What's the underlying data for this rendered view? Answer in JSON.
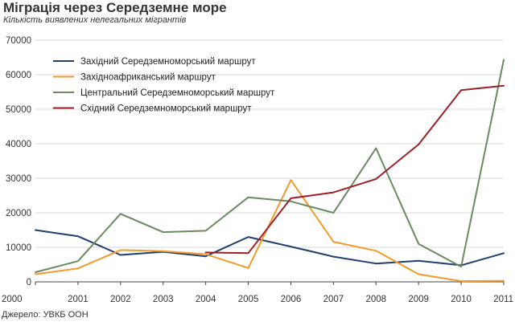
{
  "chart_data": {
    "type": "line",
    "title": "Міграція через Середземне море",
    "subtitle": "Кількість виявлених нелегальних мігрантів",
    "source": "Джерело: УВКБ ООН",
    "x": [
      "2000",
      "2001",
      "2002",
      "2003",
      "2004",
      "2005",
      "2006",
      "2007",
      "2008",
      "2009",
      "2010",
      "2011"
    ],
    "ylim": [
      0,
      70000
    ],
    "yticks": [
      0,
      10000,
      20000,
      30000,
      40000,
      50000,
      60000,
      70000
    ],
    "grid": true,
    "legend_position": "top-left",
    "series": [
      {
        "name": "Західний Середземноморський маршрут",
        "color": "#1f3f6e",
        "values": [
          15000,
          13200,
          7800,
          8700,
          7400,
          13000,
          10200,
          7300,
          5300,
          6100,
          4800,
          8300
        ]
      },
      {
        "name": "Західноафриканський маршрут",
        "color": "#f39a2b",
        "values": [
          2200,
          3900,
          9200,
          8900,
          8000,
          4000,
          29500,
          11600,
          9000,
          2200,
          200,
          300
        ]
      },
      {
        "name": "Центральний Середземноморський маршрут",
        "color": "#6a8a5f",
        "values": [
          2800,
          6000,
          19700,
          14400,
          14800,
          24500,
          23300,
          20000,
          38700,
          11000,
          4400,
          64300
        ]
      },
      {
        "name": "Східний Середземноморський маршрут",
        "color": "#9c2027",
        "values": [
          null,
          null,
          null,
          null,
          8500,
          8300,
          24200,
          25900,
          29800,
          39800,
          55500,
          56800
        ]
      }
    ]
  }
}
